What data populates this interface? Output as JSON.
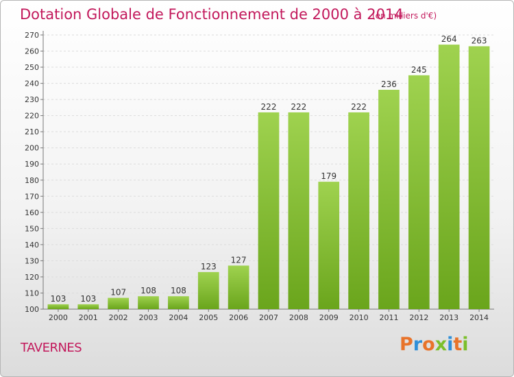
{
  "header": {
    "title": "Dotation Globale de Fonctionnement de 2000 à 2014",
    "subtitle": "(en milliers d'€)"
  },
  "footer": {
    "commune": "TAVERNES",
    "brand": "Proxiti"
  },
  "colors": {
    "title": "#c2185b",
    "bar_light": "#9fd24f",
    "bar_dark": "#6aa51c",
    "brand_letters": [
      "#e8732a",
      "#2f8fd8",
      "#e8732a",
      "#7bbf2a",
      "#2f8fd8",
      "#e8732a",
      "#7bbf2a"
    ]
  },
  "chart_data": {
    "type": "bar",
    "categories": [
      "2000",
      "2001",
      "2002",
      "2003",
      "2004",
      "2005",
      "2006",
      "2007",
      "2008",
      "2009",
      "2010",
      "2011",
      "2012",
      "2013",
      "2014"
    ],
    "values": [
      103,
      103,
      107,
      108,
      108,
      123,
      127,
      222,
      222,
      179,
      222,
      236,
      245,
      264,
      263
    ],
    "ylim": [
      100,
      270
    ],
    "yticks": [
      100,
      110,
      120,
      130,
      140,
      150,
      160,
      170,
      180,
      190,
      200,
      210,
      220,
      230,
      240,
      250,
      260,
      270
    ],
    "grid": true,
    "data_labels": true
  }
}
